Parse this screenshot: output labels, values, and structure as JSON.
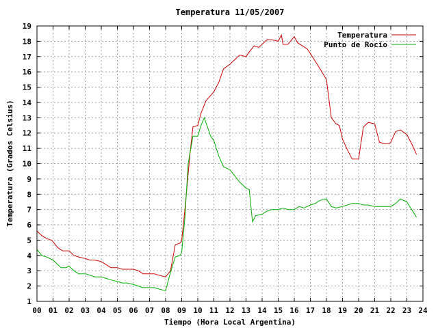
{
  "chart_data": {
    "type": "line",
    "title": "Temperatura 11/05/2007",
    "xlabel": "Tiempo (Hora Local Argentina)",
    "ylabel": "Temperatura (Grados Celsius)",
    "xlim": [
      0,
      24
    ],
    "ylim": [
      1,
      19
    ],
    "xticks": [
      "00",
      "01",
      "02",
      "03",
      "04",
      "05",
      "06",
      "07",
      "08",
      "09",
      "10",
      "11",
      "12",
      "13",
      "14",
      "15",
      "16",
      "17",
      "18",
      "19",
      "20",
      "21",
      "22",
      "23",
      "24"
    ],
    "yticks": [
      "1",
      "2",
      "3",
      "4",
      "5",
      "6",
      "7",
      "8",
      "9",
      "10",
      "11",
      "12",
      "13",
      "14",
      "15",
      "16",
      "17",
      "18",
      "19"
    ],
    "grid": true,
    "legend_position": "top-right",
    "series": [
      {
        "name": "Temperatura",
        "color": "#cc0000",
        "x": [
          0.0,
          0.3,
          0.6,
          0.9,
          1.0,
          1.3,
          1.6,
          2.0,
          2.3,
          2.6,
          3.0,
          3.3,
          3.6,
          4.0,
          4.3,
          4.6,
          5.0,
          5.3,
          5.6,
          6.0,
          6.3,
          6.6,
          7.0,
          7.3,
          7.6,
          8.0,
          8.3,
          8.6,
          8.9,
          9.0,
          9.2,
          9.5,
          9.7,
          10.0,
          10.2,
          10.5,
          11.0,
          11.3,
          11.6,
          12.0,
          12.3,
          12.6,
          13.0,
          13.2,
          13.5,
          13.8,
          14.0,
          14.3,
          14.6,
          15.0,
          15.2,
          15.3,
          15.6,
          16.0,
          16.2,
          16.5,
          16.8,
          17.0,
          17.3,
          17.6,
          18.0,
          18.3,
          18.6,
          18.8,
          19.0,
          19.3,
          19.6,
          20.0,
          20.3,
          20.6,
          21.0,
          21.3,
          21.6,
          21.9,
          22.0,
          22.3,
          22.6,
          23.0,
          23.3,
          23.6
        ],
        "y": [
          5.6,
          5.3,
          5.1,
          5.0,
          4.9,
          4.5,
          4.3,
          4.3,
          4.0,
          3.9,
          3.8,
          3.7,
          3.7,
          3.6,
          3.4,
          3.2,
          3.2,
          3.1,
          3.1,
          3.1,
          3.0,
          2.8,
          2.8,
          2.8,
          2.7,
          2.6,
          3.0,
          4.7,
          4.8,
          5.0,
          7.0,
          10.5,
          12.4,
          12.5,
          13.3,
          14.1,
          14.7,
          15.3,
          16.2,
          16.5,
          16.8,
          17.1,
          17.0,
          17.3,
          17.7,
          17.6,
          17.8,
          18.1,
          18.1,
          18.0,
          18.4,
          17.8,
          17.8,
          18.3,
          17.9,
          17.7,
          17.5,
          17.2,
          16.7,
          16.2,
          15.5,
          13.0,
          12.6,
          12.5,
          11.6,
          10.9,
          10.3,
          10.3,
          12.4,
          12.7,
          12.6,
          11.4,
          11.3,
          11.3,
          11.4,
          12.1,
          12.2,
          11.9,
          11.3,
          10.6
        ]
      },
      {
        "name": "Punto de Rocío",
        "color": "#00b000",
        "x": [
          0.0,
          0.3,
          0.6,
          1.0,
          1.3,
          1.5,
          1.8,
          2.0,
          2.3,
          2.6,
          3.0,
          3.3,
          3.6,
          4.0,
          4.3,
          4.6,
          5.0,
          5.3,
          5.6,
          6.0,
          6.3,
          6.6,
          7.0,
          7.3,
          7.6,
          8.0,
          8.3,
          8.6,
          8.9,
          9.0,
          9.2,
          9.4,
          9.7,
          10.0,
          10.2,
          10.4,
          10.6,
          10.8,
          11.0,
          11.3,
          11.6,
          12.0,
          12.3,
          12.6,
          13.0,
          13.2,
          13.4,
          13.6,
          14.0,
          14.3,
          14.6,
          15.0,
          15.3,
          15.6,
          16.0,
          16.3,
          16.6,
          17.0,
          17.3,
          17.6,
          18.0,
          18.3,
          18.6,
          19.0,
          19.3,
          19.6,
          20.0,
          20.3,
          20.6,
          21.0,
          21.3,
          21.6,
          22.0,
          22.3,
          22.6,
          23.0,
          23.3,
          23.6
        ],
        "y": [
          4.4,
          4.0,
          3.9,
          3.7,
          3.4,
          3.2,
          3.2,
          3.3,
          3.0,
          2.8,
          2.8,
          2.7,
          2.6,
          2.6,
          2.5,
          2.4,
          2.3,
          2.2,
          2.2,
          2.1,
          2.0,
          1.9,
          1.9,
          1.9,
          1.8,
          1.7,
          2.9,
          3.9,
          4.0,
          4.2,
          6.5,
          10.0,
          11.8,
          11.8,
          12.5,
          13.0,
          12.4,
          11.8,
          11.5,
          10.5,
          9.8,
          9.6,
          9.2,
          8.8,
          8.4,
          8.3,
          6.2,
          6.6,
          6.7,
          6.9,
          7.0,
          7.0,
          7.1,
          7.0,
          7.0,
          7.2,
          7.1,
          7.3,
          7.4,
          7.6,
          7.7,
          7.2,
          7.1,
          7.2,
          7.3,
          7.4,
          7.4,
          7.3,
          7.3,
          7.2,
          7.2,
          7.2,
          7.2,
          7.4,
          7.7,
          7.5,
          7.0,
          6.5
        ]
      }
    ]
  }
}
